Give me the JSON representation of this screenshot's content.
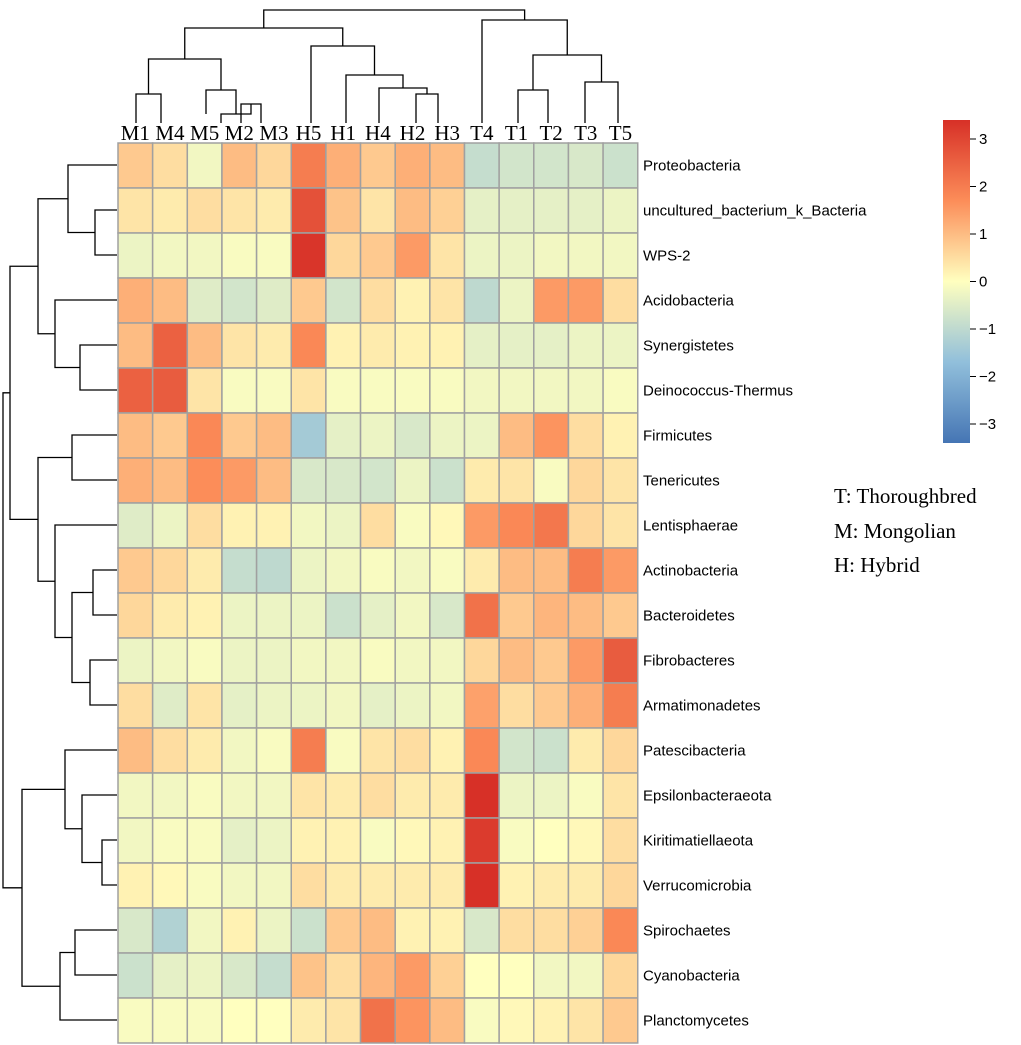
{
  "chart_data": {
    "type": "heatmap",
    "columns": [
      "M1",
      "M4",
      "M5",
      "M2",
      "M3",
      "H5",
      "H1",
      "H4",
      "H2",
      "H3",
      "T4",
      "T1",
      "T2",
      "T3",
      "T5"
    ],
    "rows": [
      "Proteobacteria",
      "uncultured_bacterium_k_Bacteria",
      "WPS-2",
      "Acidobacteria",
      "Synergistetes",
      "Deinococcus-Thermus",
      "Firmicutes",
      "Tenericutes",
      "Lentisphaerae",
      "Actinobacteria",
      "Bacteroidetes",
      "Fibrobacteres",
      "Armatimonadetes",
      "Patescibacteria",
      "Epsilonbacteraeota",
      "Kiritimatiellaeota",
      "Verrucomicrobia",
      "Spirochaetes",
      "Cyanobacteria",
      "Planctomycetes"
    ],
    "values": [
      [
        0.8,
        0.5,
        -0.2,
        1.0,
        0.6,
        2.0,
        1.2,
        0.8,
        1.2,
        1.0,
        -0.9,
        -0.7,
        -0.7,
        -0.6,
        -0.8
      ],
      [
        0.4,
        0.3,
        0.5,
        0.4,
        0.3,
        2.8,
        0.9,
        0.4,
        1.0,
        0.7,
        -0.4,
        -0.4,
        -0.4,
        -0.4,
        -0.3
      ],
      [
        -0.3,
        -0.2,
        -0.2,
        -0.1,
        -0.1,
        3.3,
        0.6,
        0.8,
        1.5,
        0.4,
        -0.3,
        -0.3,
        -0.2,
        -0.2,
        -0.2
      ],
      [
        1.2,
        1.0,
        -0.5,
        -0.7,
        -0.5,
        0.8,
        -0.7,
        0.5,
        0.2,
        0.4,
        -1.0,
        -0.3,
        1.5,
        1.5,
        0.5
      ],
      [
        1.0,
        2.5,
        1.0,
        0.4,
        0.3,
        1.8,
        0.2,
        0.3,
        0.2,
        0.2,
        -0.4,
        -0.4,
        -0.4,
        -0.3,
        -0.3
      ],
      [
        2.5,
        2.6,
        0.4,
        -0.1,
        -0.1,
        0.4,
        -0.1,
        -0.1,
        -0.1,
        -0.1,
        -0.2,
        -0.2,
        -0.2,
        -0.2,
        -0.1
      ],
      [
        1.0,
        0.8,
        1.8,
        0.8,
        1.0,
        -1.4,
        -0.4,
        -0.3,
        -0.6,
        -0.3,
        -0.3,
        1.0,
        1.6,
        0.5,
        0.2
      ],
      [
        1.2,
        1.0,
        1.7,
        1.5,
        1.0,
        -0.6,
        -0.6,
        -0.7,
        -0.3,
        -0.8,
        0.3,
        0.4,
        -0.1,
        0.6,
        0.4
      ],
      [
        -0.5,
        -0.3,
        0.5,
        0.2,
        0.2,
        -0.2,
        -0.3,
        0.5,
        -0.1,
        0.1,
        1.5,
        1.8,
        2.1,
        0.6,
        0.4
      ],
      [
        0.8,
        0.6,
        0.3,
        -0.9,
        -1.0,
        -0.3,
        -0.2,
        -0.1,
        -0.2,
        -0.1,
        0.3,
        1.0,
        1.0,
        2.0,
        1.5
      ],
      [
        0.6,
        0.3,
        0.2,
        -0.3,
        -0.3,
        -0.3,
        -0.8,
        -0.4,
        -0.2,
        -0.6,
        2.2,
        0.8,
        1.1,
        1.0,
        0.8
      ],
      [
        -0.3,
        -0.2,
        -0.1,
        -0.3,
        -0.3,
        -0.2,
        -0.2,
        -0.1,
        -0.2,
        -0.2,
        0.6,
        1.0,
        0.8,
        1.5,
        2.6
      ],
      [
        0.5,
        -0.5,
        0.4,
        -0.4,
        -0.3,
        -0.3,
        -0.2,
        -0.4,
        -0.3,
        -0.2,
        1.4,
        0.5,
        0.8,
        1.2,
        2.0
      ],
      [
        1.0,
        0.5,
        0.3,
        -0.2,
        -0.1,
        2.0,
        -0.1,
        0.4,
        0.5,
        0.2,
        1.8,
        -0.7,
        -0.8,
        0.3,
        0.6
      ],
      [
        -0.2,
        -0.2,
        -0.1,
        -0.2,
        -0.2,
        0.4,
        0.3,
        0.5,
        0.3,
        0.3,
        3.4,
        -0.3,
        -0.3,
        -0.1,
        0.4
      ],
      [
        -0.2,
        -0.1,
        -0.1,
        -0.4,
        -0.3,
        0.2,
        0.2,
        -0.1,
        0.1,
        0.2,
        3.2,
        -0.1,
        0.0,
        0.1,
        0.5
      ],
      [
        0.2,
        0.1,
        -0.1,
        -0.2,
        -0.2,
        0.5,
        0.3,
        0.3,
        0.3,
        0.3,
        3.5,
        0.2,
        0.3,
        0.3,
        0.6
      ],
      [
        -0.6,
        -1.2,
        -0.2,
        0.2,
        -0.3,
        -0.8,
        0.8,
        1.0,
        0.2,
        0.2,
        -0.6,
        0.5,
        0.5,
        0.7,
        1.8
      ],
      [
        -0.8,
        -0.4,
        -0.3,
        -0.6,
        -0.9,
        0.9,
        0.5,
        1.1,
        1.5,
        0.7,
        0.0,
        0.0,
        -0.2,
        -0.2,
        0.6
      ],
      [
        -0.1,
        -0.1,
        -0.1,
        0.0,
        0.0,
        0.3,
        0.4,
        2.2,
        1.6,
        1.0,
        -0.1,
        0.1,
        0.2,
        0.4,
        0.8
      ]
    ],
    "colorbar": {
      "ticks": [
        3,
        2,
        1,
        0,
        -1,
        -2,
        -3
      ],
      "tick_labels": [
        "3",
        "2",
        "1",
        "0",
        "−1",
        "−2",
        "−3"
      ],
      "range": [
        -3.4,
        3.4
      ]
    },
    "legend": [
      "T: Thoroughbred",
      "M: Mongolian",
      "H: Hybrid"
    ],
    "colors": {
      "low": "#4575b4",
      "mid": "#ffffbf",
      "high": "#d73027",
      "grid": "#a0a0a0",
      "tree": "#000000"
    }
  }
}
